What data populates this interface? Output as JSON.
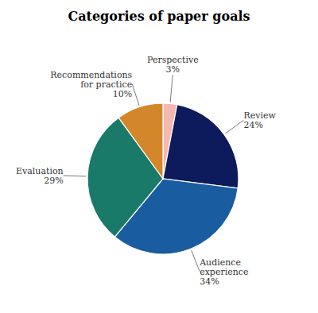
{
  "chart_data": {
    "type": "pie",
    "title": "Categories of paper goals",
    "categories": [
      "Perspective",
      "Review",
      "Audience\nexperience",
      "Evaluation",
      "Recommendations\nfor practice"
    ],
    "values": [
      3,
      24,
      34,
      29,
      10
    ],
    "value_labels": [
      "3%",
      "24%",
      "34%",
      "29%",
      "10%"
    ],
    "data_labels": true,
    "colors": [
      "#f4b8b0",
      "#0d1a5c",
      "#1a5ca0",
      "#1a7a6a",
      "#d4872a"
    ]
  }
}
